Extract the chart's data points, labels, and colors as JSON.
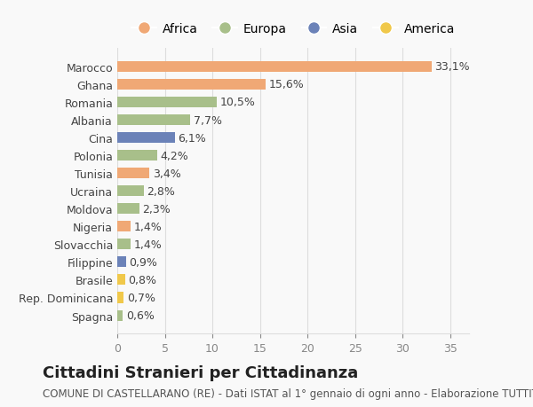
{
  "countries": [
    "Marocco",
    "Ghana",
    "Romania",
    "Albania",
    "Cina",
    "Polonia",
    "Tunisia",
    "Ucraina",
    "Moldova",
    "Nigeria",
    "Slovacchia",
    "Filippine",
    "Brasile",
    "Rep. Dominicana",
    "Spagna"
  ],
  "values": [
    33.1,
    15.6,
    10.5,
    7.7,
    6.1,
    4.2,
    3.4,
    2.8,
    2.3,
    1.4,
    1.4,
    0.9,
    0.8,
    0.7,
    0.6
  ],
  "labels": [
    "33,1%",
    "15,6%",
    "10,5%",
    "7,7%",
    "6,1%",
    "4,2%",
    "3,4%",
    "2,8%",
    "2,3%",
    "1,4%",
    "1,4%",
    "0,9%",
    "0,8%",
    "0,7%",
    "0,6%"
  ],
  "continents": [
    "Africa",
    "Africa",
    "Europa",
    "Europa",
    "Asia",
    "Europa",
    "Africa",
    "Europa",
    "Europa",
    "Africa",
    "Europa",
    "Asia",
    "America",
    "America",
    "Europa"
  ],
  "continent_colors": {
    "Africa": "#F0A875",
    "Europa": "#A8BF8A",
    "Asia": "#6B82B8",
    "America": "#F0C84A"
  },
  "legend_order": [
    "Africa",
    "Europa",
    "Asia",
    "America"
  ],
  "xlim": [
    0,
    37
  ],
  "xticks": [
    0,
    5,
    10,
    15,
    20,
    25,
    30,
    35
  ],
  "title": "Cittadini Stranieri per Cittadinanza",
  "subtitle": "COMUNE DI CASTELLARANO (RE) - Dati ISTAT al 1° gennaio di ogni anno - Elaborazione TUTTITALIA.IT",
  "background_color": "#f9f9f9",
  "bar_height": 0.6,
  "title_fontsize": 13,
  "subtitle_fontsize": 8.5,
  "label_fontsize": 9,
  "tick_fontsize": 9,
  "grid_color": "#dddddd"
}
